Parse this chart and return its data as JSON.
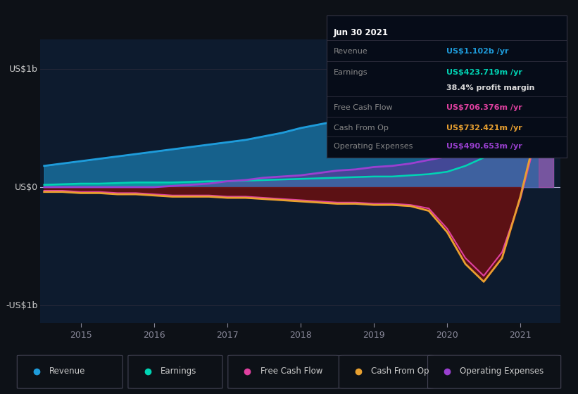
{
  "bg_color": "#0d1117",
  "plot_bg": "#0d1b2e",
  "x_years": [
    2014.5,
    2014.75,
    2015.0,
    2015.25,
    2015.5,
    2015.75,
    2016.0,
    2016.25,
    2016.5,
    2016.75,
    2017.0,
    2017.25,
    2017.5,
    2017.75,
    2018.0,
    2018.25,
    2018.5,
    2018.75,
    2019.0,
    2019.25,
    2019.5,
    2019.75,
    2020.0,
    2020.25,
    2020.5,
    2020.75,
    2021.0,
    2021.25,
    2021.45
  ],
  "revenue": [
    0.18,
    0.2,
    0.22,
    0.24,
    0.26,
    0.28,
    0.3,
    0.32,
    0.34,
    0.36,
    0.38,
    0.4,
    0.43,
    0.46,
    0.5,
    0.53,
    0.56,
    0.59,
    0.62,
    0.65,
    0.68,
    0.73,
    0.78,
    0.84,
    0.9,
    0.97,
    1.04,
    1.08,
    1.1
  ],
  "earnings": [
    0.02,
    0.025,
    0.03,
    0.03,
    0.035,
    0.04,
    0.04,
    0.04,
    0.045,
    0.05,
    0.05,
    0.055,
    0.06,
    0.065,
    0.07,
    0.075,
    0.08,
    0.085,
    0.09,
    0.09,
    0.1,
    0.11,
    0.13,
    0.18,
    0.25,
    0.3,
    0.34,
    0.38,
    0.42
  ],
  "free_cash_flow": [
    -0.03,
    -0.03,
    -0.04,
    -0.04,
    -0.05,
    -0.05,
    -0.06,
    -0.07,
    -0.07,
    -0.07,
    -0.08,
    -0.08,
    -0.09,
    -0.1,
    -0.11,
    -0.12,
    -0.13,
    -0.13,
    -0.14,
    -0.14,
    -0.15,
    -0.18,
    -0.35,
    -0.6,
    -0.75,
    -0.55,
    -0.1,
    0.5,
    0.7
  ],
  "cash_from_op": [
    -0.04,
    -0.04,
    -0.05,
    -0.05,
    -0.06,
    -0.06,
    -0.07,
    -0.08,
    -0.08,
    -0.08,
    -0.09,
    -0.09,
    -0.1,
    -0.11,
    -0.12,
    -0.13,
    -0.14,
    -0.14,
    -0.15,
    -0.15,
    -0.16,
    -0.2,
    -0.38,
    -0.65,
    -0.8,
    -0.6,
    -0.08,
    0.55,
    0.73
  ],
  "operating_expenses": [
    0.0,
    0.0,
    0.0,
    0.0,
    0.0,
    0.0,
    0.0,
    0.01,
    0.02,
    0.03,
    0.05,
    0.06,
    0.08,
    0.09,
    0.1,
    0.12,
    0.14,
    0.15,
    0.17,
    0.18,
    0.2,
    0.23,
    0.26,
    0.3,
    0.34,
    0.38,
    0.42,
    0.46,
    0.49
  ],
  "revenue_color": "#1e9cdb",
  "earnings_color": "#00d4b4",
  "fcf_color": "#e040a0",
  "cashop_color": "#e8a030",
  "opex_color": "#9a40d0",
  "revenue_fill": "#1e9cdb",
  "earnings_fill": "#00d4b4",
  "opex_fill": "#7030a0",
  "neg_fill_dark": "#6b1010",
  "info_box": {
    "date": "Jun 30 2021",
    "revenue_val": "US$1.102b",
    "earnings_val": "US$423.719m",
    "profit_margin": "38.4%",
    "fcf_val": "US$706.376m",
    "cashop_val": "US$732.421m",
    "opex_val": "US$490.653m"
  },
  "legend_items": [
    {
      "label": "Revenue",
      "color": "#1e9cdb"
    },
    {
      "label": "Earnings",
      "color": "#00d4b4"
    },
    {
      "label": "Free Cash Flow",
      "color": "#e040a0"
    },
    {
      "label": "Cash From Op",
      "color": "#e8a030"
    },
    {
      "label": "Operating Expenses",
      "color": "#9a40d0"
    }
  ]
}
